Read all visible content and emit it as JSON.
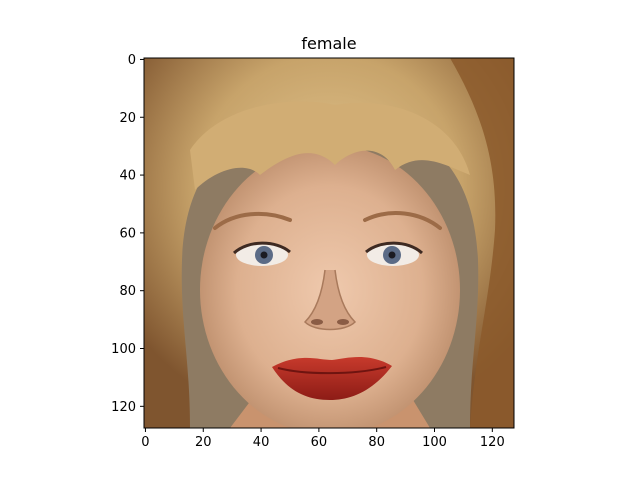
{
  "figure": {
    "title": "female"
  },
  "image_axes": {
    "x_ticks": [
      0,
      20,
      40,
      60,
      80,
      100,
      120
    ],
    "y_ticks": [
      0,
      20,
      40,
      60,
      80,
      100,
      120
    ],
    "x_range": [
      0,
      128
    ],
    "y_range": [
      0,
      128
    ],
    "y_inverted": true
  },
  "image_content": {
    "subject": "face portrait",
    "colors": {
      "background": "#8e7b63",
      "hair": "#c7a36a",
      "hair_dark": "#8c5a2b",
      "skin": "#e0b596",
      "skin_shadow": "#b98a68",
      "lips": "#b8291f",
      "eyes": "#5b6b86"
    }
  }
}
